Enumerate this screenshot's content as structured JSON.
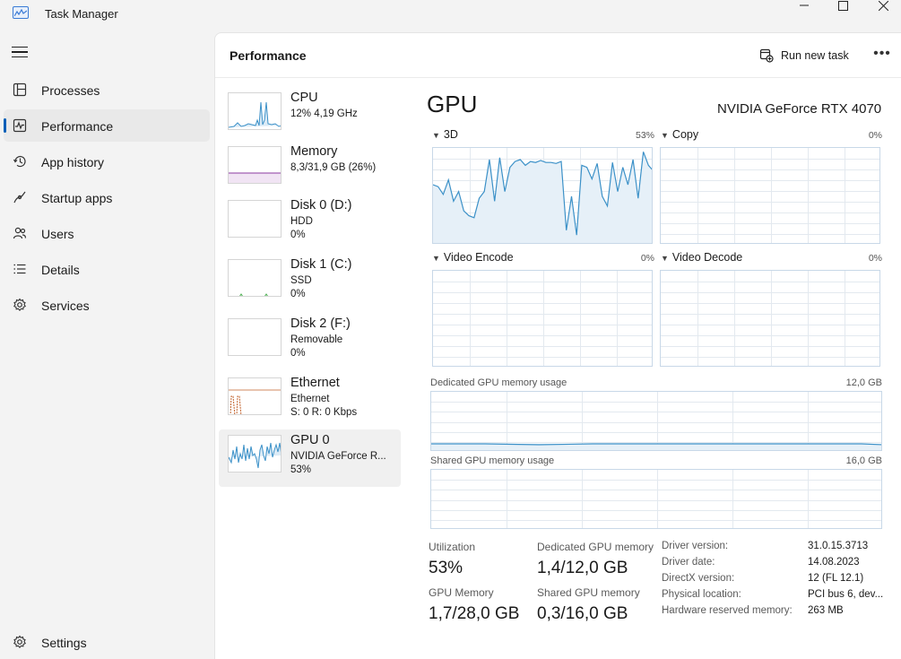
{
  "window": {
    "title": "Task Manager"
  },
  "colors": {
    "accent": "#005fb8",
    "gpu_line": "#3c91c8",
    "mem_line": "#8a3aa0",
    "eth_line": "#c0602a",
    "disk_line": "#4caf50"
  },
  "sidebar": {
    "items": [
      {
        "label": "Processes",
        "icon": "processes-icon",
        "active": false
      },
      {
        "label": "Performance",
        "icon": "performance-icon",
        "active": true
      },
      {
        "label": "App history",
        "icon": "app-history-icon",
        "active": false
      },
      {
        "label": "Startup apps",
        "icon": "startup-apps-icon",
        "active": false
      },
      {
        "label": "Users",
        "icon": "users-icon",
        "active": false
      },
      {
        "label": "Details",
        "icon": "details-icon",
        "active": false
      },
      {
        "label": "Services",
        "icon": "services-icon",
        "active": false
      }
    ],
    "settings_label": "Settings"
  },
  "header": {
    "title": "Performance",
    "run_task_label": "Run new task",
    "more_label": "•••"
  },
  "devices": [
    {
      "name": "CPU",
      "line1": "12% 4,19 GHz",
      "line2": ""
    },
    {
      "name": "Memory",
      "line1": "8,3/31,9 GB (26%)",
      "line2": ""
    },
    {
      "name": "Disk 0 (D:)",
      "line1": "HDD",
      "line2": "0%"
    },
    {
      "name": "Disk 1 (C:)",
      "line1": "SSD",
      "line2": "0%"
    },
    {
      "name": "Disk 2 (F:)",
      "line1": "Removable",
      "line2": "0%"
    },
    {
      "name": "Ethernet",
      "line1": "Ethernet",
      "line2": "S: 0 R: 0 Kbps"
    },
    {
      "name": "GPU 0",
      "line1": "NVIDIA GeForce R...",
      "line2": "53%"
    }
  ],
  "gpu": {
    "title": "GPU",
    "model": "NVIDIA GeForce RTX 4070",
    "engines": [
      {
        "label": "3D",
        "pct": "53%"
      },
      {
        "label": "Copy",
        "pct": "0%"
      },
      {
        "label": "Video Encode",
        "pct": "0%"
      },
      {
        "label": "Video Decode",
        "pct": "0%"
      }
    ],
    "dedicated_label": "Dedicated GPU memory usage",
    "dedicated_max": "12,0 GB",
    "shared_label": "Shared GPU memory usage",
    "shared_max": "16,0 GB",
    "utilization_history": [
      0.62,
      0.6,
      0.52,
      0.67,
      0.45,
      0.55,
      0.35,
      0.3,
      0.28,
      0.48,
      0.55,
      0.88,
      0.45,
      0.9,
      0.55,
      0.8,
      0.86,
      0.88,
      0.82,
      0.86,
      0.85,
      0.87,
      0.85,
      0.85,
      0.84,
      0.86,
      0.15,
      0.5,
      0.1,
      0.82,
      0.8,
      0.68,
      0.84,
      0.5,
      0.4,
      0.85,
      0.55,
      0.8,
      0.62,
      0.88,
      0.48,
      0.96,
      0.82,
      0.76
    ],
    "stats": {
      "utilization_label": "Utilization",
      "utilization": "53%",
      "dedicated_label": "Dedicated GPU memory",
      "dedicated": "1,4/12,0 GB",
      "gpu_memory_label": "GPU Memory",
      "gpu_memory": "1,7/28,0 GB",
      "shared_label": "Shared GPU memory",
      "shared": "0,3/16,0 GB"
    },
    "info": [
      {
        "key": "Driver version:",
        "value": "31.0.15.3713"
      },
      {
        "key": "Driver date:",
        "value": "14.08.2023"
      },
      {
        "key": "DirectX version:",
        "value": "12 (FL 12.1)"
      },
      {
        "key": "Physical location:",
        "value": "PCI bus 6, dev..."
      },
      {
        "key": "Hardware reserved memory:",
        "value": "263 MB"
      }
    ]
  }
}
